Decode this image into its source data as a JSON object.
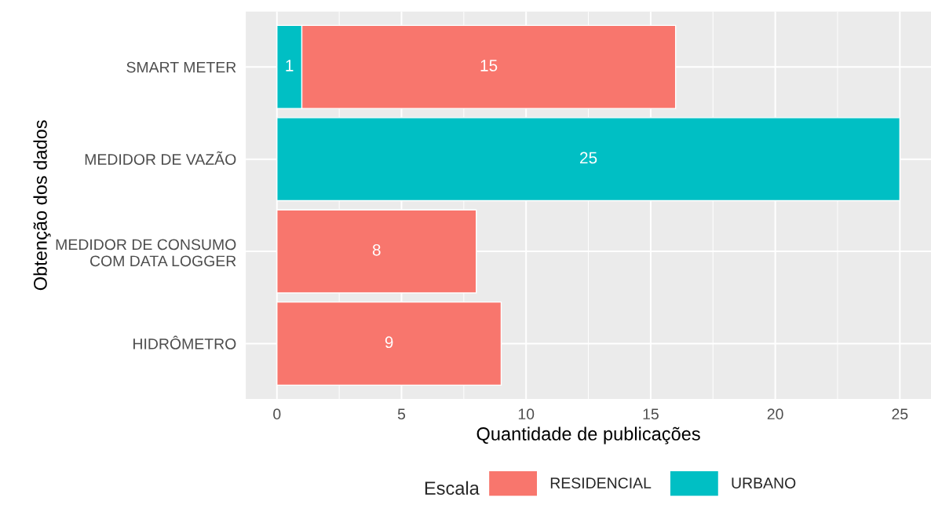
{
  "chart_data": {
    "type": "bar",
    "orientation": "horizontal",
    "stacked": true,
    "xlabel": "Quantidade de publicações",
    "ylabel": "Obtenção dos dados",
    "legend_title": "Escala",
    "categories": [
      "SMART METER",
      "MEDIDOR DE VAZÃO",
      "MEDIDOR DE CONSUMO\nCOM DATA LOGGER",
      "HIDRÔMETRO"
    ],
    "series": [
      {
        "name": "URBANO",
        "color": "#00bfc4",
        "values": [
          1,
          25,
          null,
          null
        ]
      },
      {
        "name": "RESIDENCIAL",
        "color": "#f8766d",
        "values": [
          15,
          null,
          8,
          9
        ]
      }
    ],
    "xlim": [
      -1.25,
      26.25
    ],
    "xticks": [
      0,
      5,
      10,
      15,
      20,
      25
    ],
    "grid": true,
    "legend": "bottom",
    "data_labels": true
  }
}
